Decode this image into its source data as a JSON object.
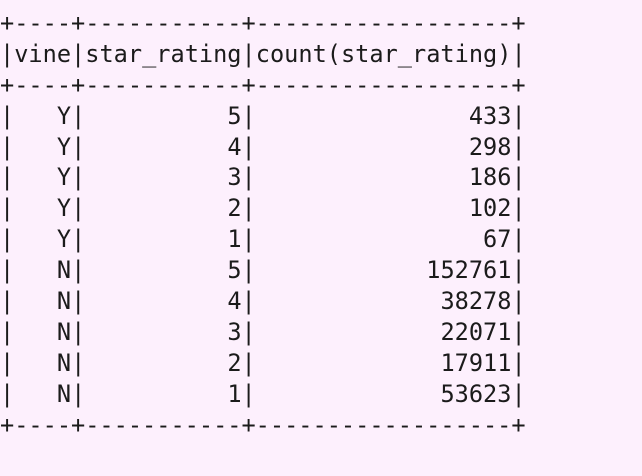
{
  "table": {
    "columns": [
      "vine",
      "star_rating",
      "count(star_rating)"
    ],
    "rows": [
      [
        "Y",
        "5",
        "433"
      ],
      [
        "Y",
        "4",
        "298"
      ],
      [
        "Y",
        "3",
        "186"
      ],
      [
        "Y",
        "2",
        "102"
      ],
      [
        "Y",
        "1",
        "67"
      ],
      [
        "N",
        "5",
        "152761"
      ],
      [
        "N",
        "4",
        "38278"
      ],
      [
        "N",
        "3",
        "22071"
      ],
      [
        "N",
        "2",
        "17911"
      ],
      [
        "N",
        "1",
        "53623"
      ]
    ]
  }
}
